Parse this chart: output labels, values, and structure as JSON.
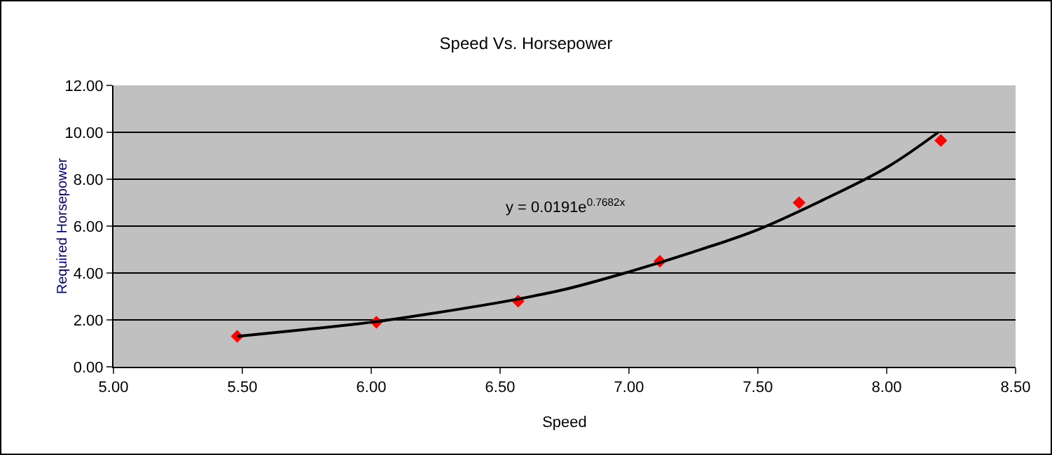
{
  "chart_data": {
    "type": "scatter",
    "title": "Speed Vs. Horsepower",
    "xlabel": "Speed",
    "ylabel": "Required Horsepower",
    "xlim": [
      5,
      8.5
    ],
    "xticks": [
      {
        "value": 5,
        "label": "5.00"
      },
      {
        "value": 5.5,
        "label": "5.50"
      },
      {
        "value": 6,
        "label": "6.00"
      },
      {
        "value": 6.5,
        "label": "6.50"
      },
      {
        "value": 7,
        "label": "7.00"
      },
      {
        "value": 7.5,
        "label": "7.50"
      },
      {
        "value": 8,
        "label": "8.00"
      },
      {
        "value": 8.5,
        "label": "8.50"
      }
    ],
    "ylim": [
      0,
      12
    ],
    "yticks": [
      {
        "value": 0,
        "label": "0.00"
      },
      {
        "value": 2,
        "label": "2.00"
      },
      {
        "value": 4,
        "label": "4.00"
      },
      {
        "value": 6,
        "label": "6.00"
      },
      {
        "value": 8,
        "label": "8.00"
      },
      {
        "value": 10,
        "label": "10.00"
      },
      {
        "value": 12,
        "label": "12.00"
      }
    ],
    "grid": "y",
    "series": [
      {
        "type": "scatter",
        "marker": "diamond",
        "color": "#ff0000",
        "x": [
          5.48,
          6.02,
          6.57,
          7.12,
          7.66,
          8.21
        ],
        "values": [
          1.3,
          1.9,
          2.8,
          4.5,
          7.0,
          9.65
        ]
      },
      {
        "type": "line",
        "color": "#000000",
        "line_style": "solid",
        "x": [
          5.48,
          5.75,
          6.0,
          6.25,
          6.5,
          6.75,
          7.0,
          7.25,
          7.5,
          7.75,
          8.0,
          8.2
        ],
        "values": [
          1.3,
          1.6,
          1.9,
          2.3,
          2.75,
          3.3,
          4.05,
          4.9,
          5.85,
          7.1,
          8.5,
          10.0
        ]
      }
    ],
    "annotations": [
      "y = 0.0191e$^{0.7682x}$"
    ]
  }
}
